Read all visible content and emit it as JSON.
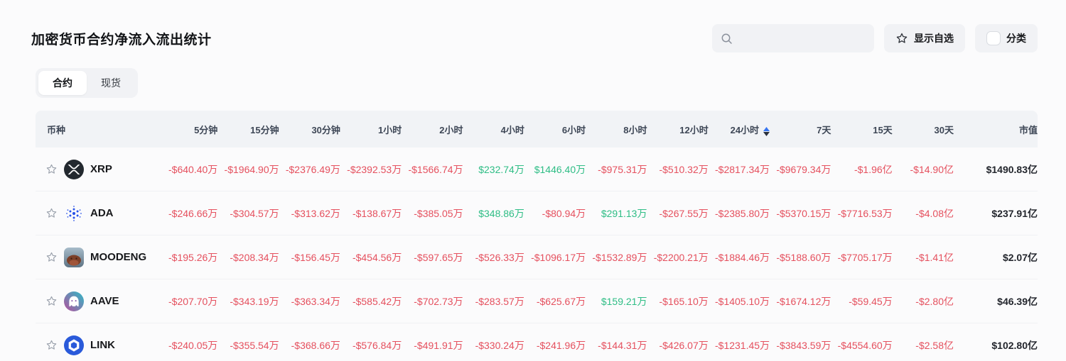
{
  "page": {
    "title": "加密货币合约净流入流出统计"
  },
  "toolbar": {
    "search": {
      "placeholder": ""
    },
    "show_favorites_label": "显示自选",
    "category_label": "分类"
  },
  "tabs": [
    {
      "id": "contracts",
      "label": "合约",
      "active": true
    },
    {
      "id": "spot",
      "label": "现货",
      "active": false
    }
  ],
  "colors": {
    "negative": "#e5505e",
    "positive": "#2ebd85",
    "sort_active": "#3574f0",
    "sort_inactive": "#2b313c"
  },
  "table": {
    "columns": [
      "币种",
      "5分钟",
      "15分钟",
      "30分钟",
      "1小时",
      "2小时",
      "4小时",
      "6小时",
      "8小时",
      "12小时",
      "24小时",
      "7天",
      "15天",
      "30天",
      "市值"
    ],
    "sorted_column": "24小时",
    "sort_direction": "asc",
    "rows": [
      {
        "symbol": "XRP",
        "icon": "xrp",
        "values": [
          "-$640.40万",
          "-$1964.90万",
          "-$2376.49万",
          "-$2392.53万",
          "-$1566.74万",
          "$232.74万",
          "$1446.40万",
          "-$975.31万",
          "-$510.32万",
          "-$2817.34万",
          "-$9679.34万",
          "-$1.96亿",
          "-$14.90亿"
        ],
        "market_cap": "$1490.83亿"
      },
      {
        "symbol": "ADA",
        "icon": "ada",
        "values": [
          "-$246.66万",
          "-$304.57万",
          "-$313.62万",
          "-$138.67万",
          "-$385.05万",
          "$348.86万",
          "-$80.94万",
          "$291.13万",
          "-$267.55万",
          "-$2385.80万",
          "-$5370.15万",
          "-$7716.53万",
          "-$4.08亿"
        ],
        "market_cap": "$237.91亿"
      },
      {
        "symbol": "MOODENG",
        "icon": "moodeng",
        "values": [
          "-$195.26万",
          "-$208.34万",
          "-$156.45万",
          "-$454.56万",
          "-$597.65万",
          "-$526.33万",
          "-$1096.17万",
          "-$1532.89万",
          "-$2200.21万",
          "-$1884.46万",
          "-$5188.60万",
          "-$7705.17万",
          "-$1.41亿"
        ],
        "market_cap": "$2.07亿"
      },
      {
        "symbol": "AAVE",
        "icon": "aave",
        "values": [
          "-$207.70万",
          "-$343.19万",
          "-$363.34万",
          "-$585.42万",
          "-$702.73万",
          "-$283.57万",
          "-$625.67万",
          "$159.21万",
          "-$165.10万",
          "-$1405.10万",
          "-$1674.12万",
          "-$59.45万",
          "-$2.80亿"
        ],
        "market_cap": "$46.39亿"
      },
      {
        "symbol": "LINK",
        "icon": "link",
        "values": [
          "-$240.05万",
          "-$355.54万",
          "-$368.66万",
          "-$576.84万",
          "-$491.91万",
          "-$330.24万",
          "-$241.96万",
          "-$144.31万",
          "-$426.07万",
          "-$1231.45万",
          "-$3843.59万",
          "-$4554.60万",
          "-$2.58亿"
        ],
        "market_cap": "$102.80亿"
      }
    ]
  }
}
